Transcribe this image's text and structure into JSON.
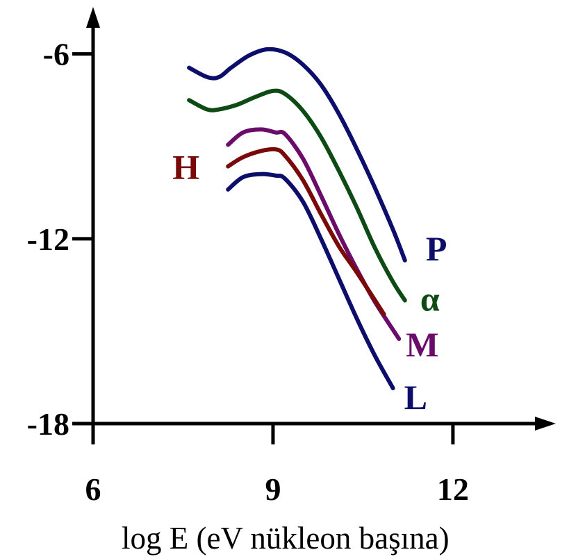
{
  "chart_data": {
    "type": "line",
    "xlabel": "log E (eV nükleon başına)",
    "ylabel": "",
    "xlim": [
      6,
      13.6
    ],
    "ylim": [
      -18,
      -4.7
    ],
    "x_ticks": [
      6,
      9,
      12
    ],
    "x_tick_labels": [
      "6",
      "9",
      "12"
    ],
    "y_ticks": [
      -6,
      -12,
      -18
    ],
    "y_tick_labels": [
      "-6",
      "-12",
      "-18"
    ],
    "grid": false,
    "legend": "direct labels at line ends",
    "series": [
      {
        "name": "P",
        "color": "#0d0d6b",
        "x": [
          7.6,
          7.9,
          8.1,
          8.3,
          8.6,
          8.9,
          9.2,
          9.5,
          9.8,
          10.1,
          10.4,
          10.7,
          11.0,
          11.2
        ],
        "y": [
          -6.45,
          -6.75,
          -6.75,
          -6.45,
          -6.05,
          -5.85,
          -5.95,
          -6.35,
          -7.0,
          -7.95,
          -9.1,
          -10.35,
          -11.7,
          -12.7
        ]
      },
      {
        "name": "α",
        "color": "#0d4a14",
        "x": [
          7.6,
          7.9,
          8.1,
          8.4,
          8.7,
          9.0,
          9.2,
          9.5,
          9.8,
          10.1,
          10.4,
          10.7,
          11.0,
          11.2
        ],
        "y": [
          -7.5,
          -7.8,
          -7.8,
          -7.65,
          -7.4,
          -7.2,
          -7.3,
          -7.85,
          -8.7,
          -9.8,
          -11.0,
          -12.3,
          -13.4,
          -14.0
        ]
      },
      {
        "name": "M",
        "color": "#6b0c6b",
        "x": [
          8.25,
          8.5,
          8.8,
          9.05,
          9.2,
          9.5,
          9.8,
          10.1,
          10.4,
          10.7,
          11.1
        ],
        "y": [
          -8.95,
          -8.55,
          -8.45,
          -8.55,
          -8.6,
          -9.4,
          -10.6,
          -11.85,
          -13.0,
          -14.05,
          -15.25
        ]
      },
      {
        "name": "H",
        "color": "#7a0a0a",
        "x": [
          8.25,
          8.5,
          8.8,
          9.05,
          9.2,
          9.5,
          9.8,
          10.1,
          10.4,
          10.85
        ],
        "y": [
          -9.65,
          -9.35,
          -9.15,
          -9.1,
          -9.3,
          -10.1,
          -11.2,
          -12.25,
          -13.1,
          -14.45
        ]
      },
      {
        "name": "L",
        "color": "#0d0d6b",
        "x": [
          8.25,
          8.5,
          8.8,
          9.05,
          9.2,
          9.5,
          9.8,
          10.1,
          10.4,
          10.7,
          11.0
        ],
        "y": [
          -10.4,
          -10.0,
          -9.9,
          -9.95,
          -10.05,
          -10.8,
          -12.0,
          -13.3,
          -14.6,
          -15.8,
          -16.85
        ]
      }
    ]
  }
}
